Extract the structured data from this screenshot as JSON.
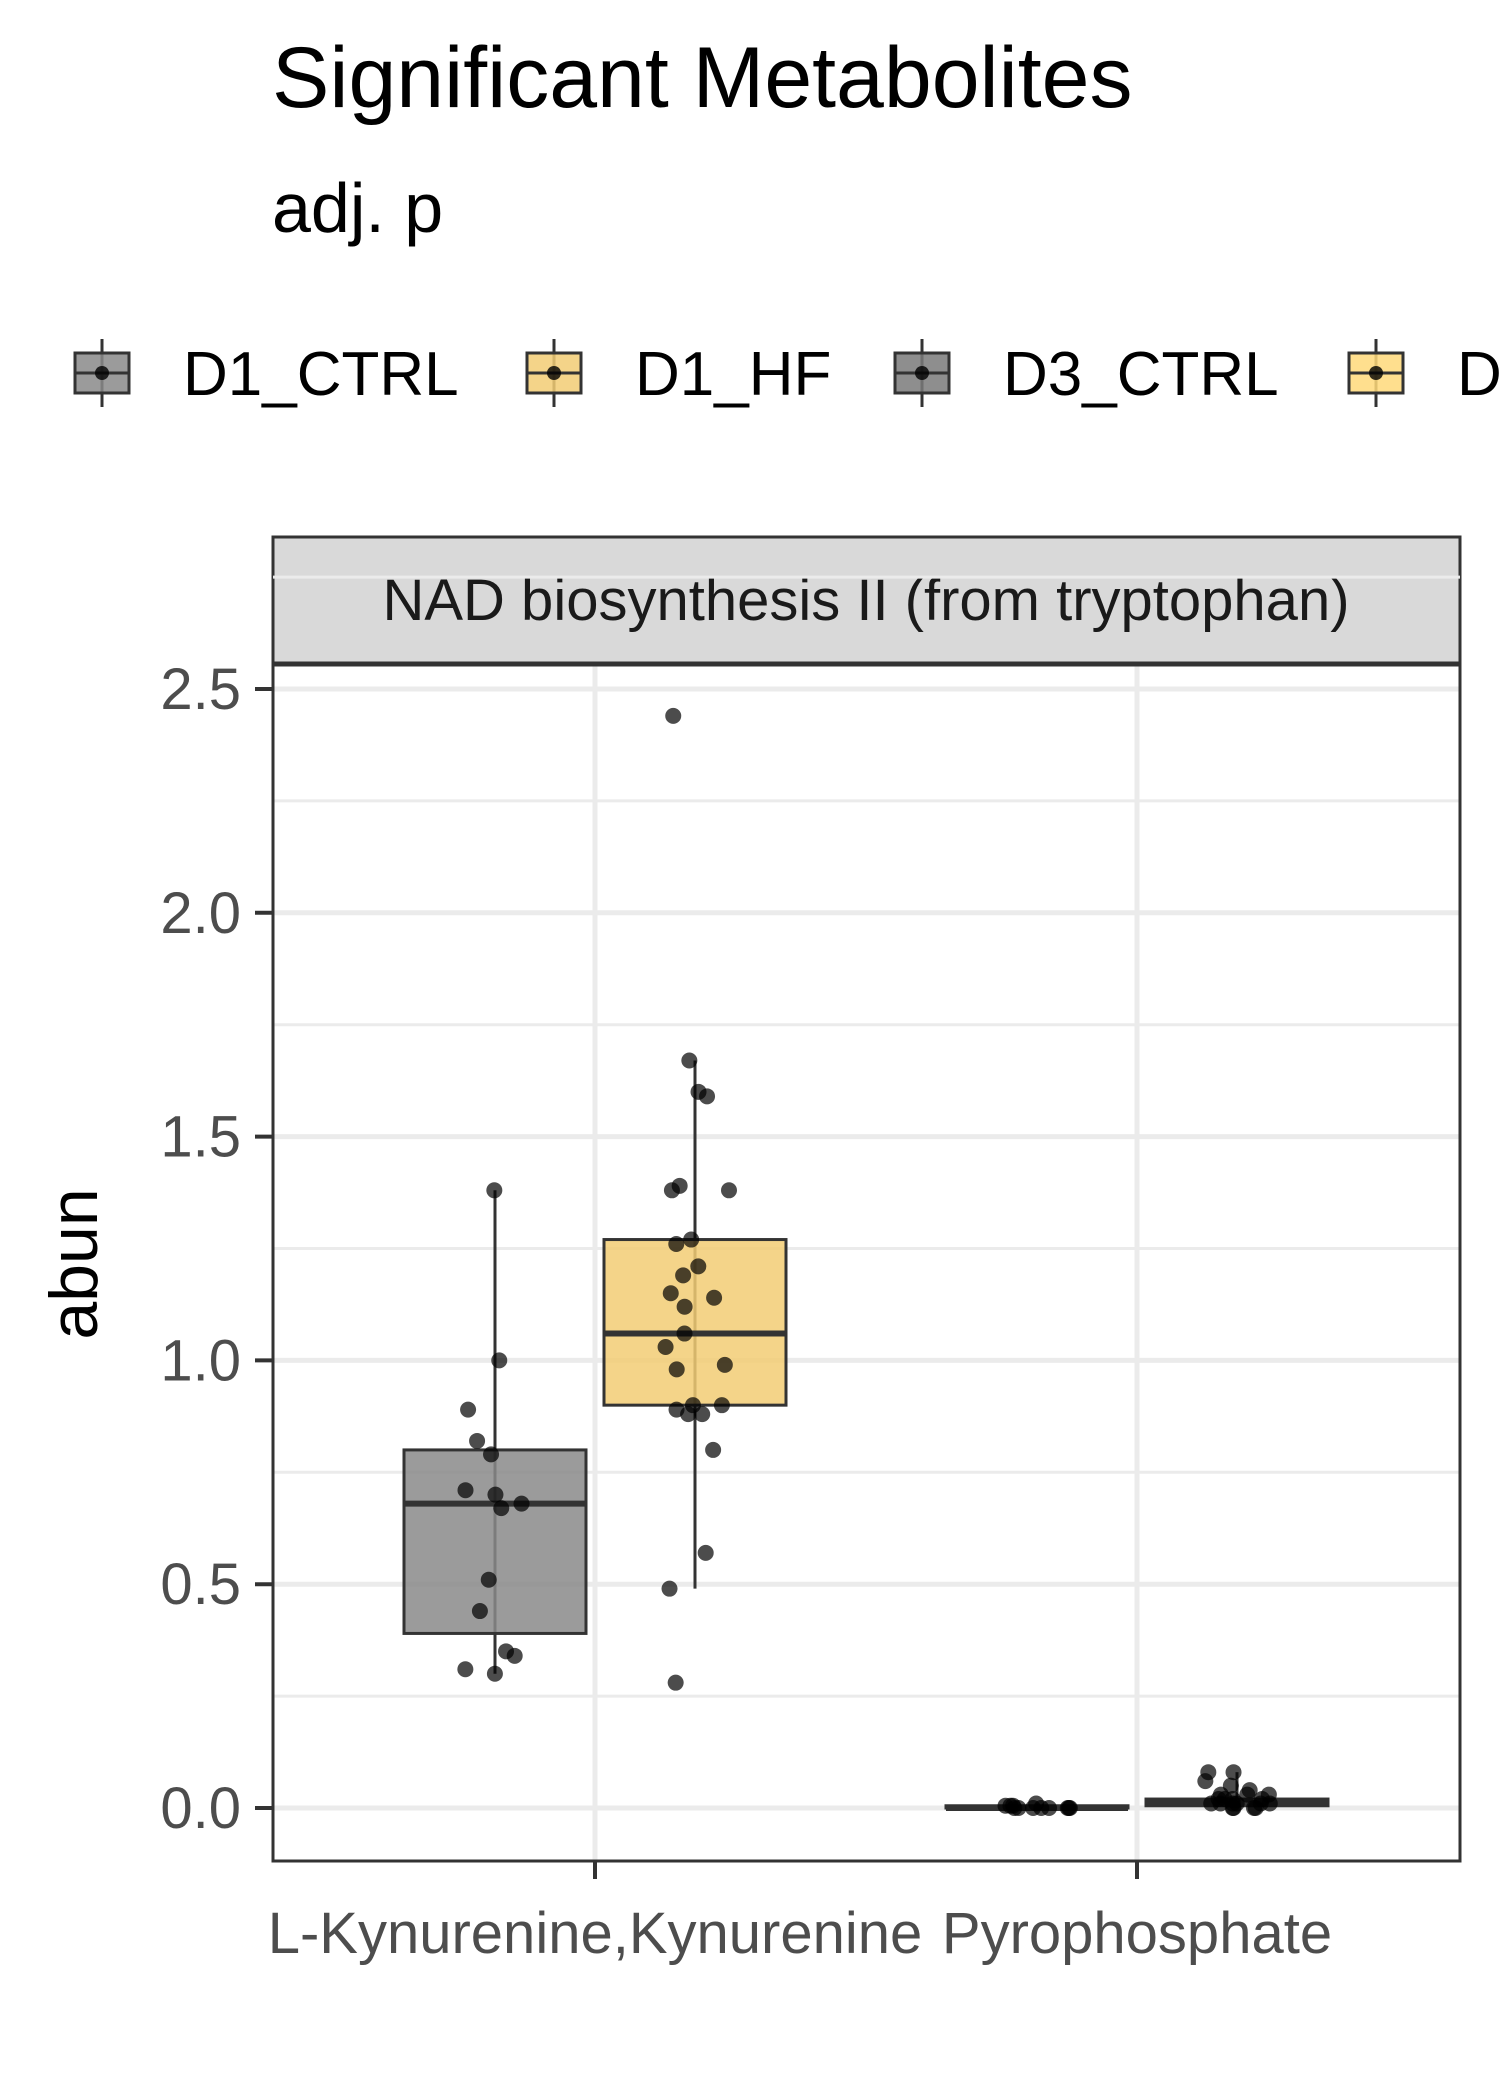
{
  "chart_data": {
    "type": "box",
    "title": "Significant Metabolites",
    "subtitle": "adj. p",
    "facet_label": "NAD biosynthesis II (from tryptophan)",
    "ylabel": "abun",
    "xlabel": "",
    "ylim": [
      -0.1,
      2.8
    ],
    "yticks": [
      "0.0",
      "0.5",
      "1.0",
      "1.5",
      "2.0",
      "2.5"
    ],
    "ytick_values": [
      0,
      0.5,
      1.0,
      1.5,
      2.0,
      2.5
    ],
    "categories": [
      "L-Kynurenine,Kynurenine",
      "Pyrophosphate"
    ],
    "legend_position": "top",
    "grid": true,
    "legend": [
      {
        "name": "D1_CTRL",
        "color": "#8a8a8a"
      },
      {
        "name": "D1_HF",
        "color": "#f2cc74"
      },
      {
        "name": "D3_CTRL",
        "color": "#7a7a7a"
      },
      {
        "name": "D",
        "color": "#ffd97a"
      }
    ],
    "series": [
      {
        "name": "D1_CTRL",
        "color": "#8a8a8a",
        "boxes": [
          {
            "category": "L-Kynurenine,Kynurenine",
            "min": 0.3,
            "q1": 0.39,
            "median": 0.68,
            "q3": 0.8,
            "max": 1.38,
            "points": [
              1.38,
              1.0,
              0.89,
              0.82,
              0.79,
              0.7,
              0.71,
              0.68,
              0.67,
              0.51,
              0.44,
              0.34,
              0.35,
              0.31,
              0.3
            ]
          },
          {
            "category": "Pyrophosphate",
            "min": 0.0,
            "q1": 0.0,
            "median": 0.0,
            "q3": 0.005,
            "max": 0.01,
            "points": [
              0.0,
              0.0,
              0.005,
              0.0,
              0.01,
              0.0,
              0.005,
              0.0,
              0.0,
              0.005,
              0.0,
              0.0
            ]
          }
        ]
      },
      {
        "name": "D1_HF",
        "color": "#f2cc74",
        "boxes": [
          {
            "category": "L-Kynurenine,Kynurenine",
            "min": 0.49,
            "q1": 0.9,
            "median": 1.06,
            "q3": 1.27,
            "max": 1.67,
            "points": [
              2.44,
              1.67,
              1.6,
              1.59,
              1.39,
              1.38,
              1.38,
              1.27,
              1.26,
              1.21,
              1.19,
              1.15,
              1.14,
              1.12,
              1.06,
              1.03,
              0.99,
              0.98,
              0.9,
              0.9,
              0.89,
              0.88,
              0.88,
              0.8,
              0.57,
              0.49,
              0.28
            ]
          },
          {
            "category": "Pyrophosphate",
            "min": 0.0,
            "q1": 0.005,
            "median": 0.012,
            "q3": 0.02,
            "max": 0.08,
            "points": [
              0.08,
              0.08,
              0.06,
              0.05,
              0.04,
              0.03,
              0.03,
              0.02,
              0.02,
              0.01,
              0.01,
              0.01,
              0.0,
              0.0,
              0.01,
              0.02,
              0.0,
              0.01,
              0.03,
              0.0,
              0.02,
              0.01
            ]
          }
        ]
      }
    ]
  }
}
